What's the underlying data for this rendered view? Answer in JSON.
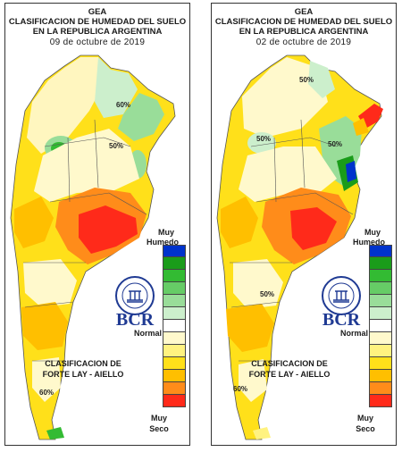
{
  "panels": [
    {
      "org": "GEA",
      "title_line1": "CLASIFICACION DE HUMEDAD DEL SUELO",
      "title_line2": "EN LA REPUBLICA ARGENTINA",
      "date": "09 de octubre de 2019",
      "contour_labels": [
        "60%",
        "50%",
        "60%"
      ]
    },
    {
      "org": "GEA",
      "title_line1": "CLASIFICACION DE HUMEDAD DEL SUELO",
      "title_line2": "EN LA REPUBLICA ARGENTINA",
      "date": "02 de octubre de 2019",
      "contour_labels": [
        "50%",
        "50%",
        "50%",
        "50%",
        "60%"
      ]
    }
  ],
  "legend": {
    "top_label_1": "Muy",
    "top_label_2": "Humedo",
    "middle_label": "Normal",
    "classification_1": "CLASIFICACION DE",
    "classification_2": "FORTE LAY - AIELLO",
    "bottom_label_1": "Muy",
    "bottom_label_2": "Seco",
    "colors": [
      "#0033cc",
      "#1a9c1a",
      "#33bb33",
      "#66cc66",
      "#99dd99",
      "#ccefcc",
      "#ffffff",
      "#fff9cc",
      "#fff280",
      "#ffe01a",
      "#ffbf00",
      "#ff8c1a",
      "#ff2a1a"
    ]
  },
  "logo": {
    "text": "BCR",
    "seal_text": "BOLSA DE COMERCIO DE ROSARIO"
  }
}
